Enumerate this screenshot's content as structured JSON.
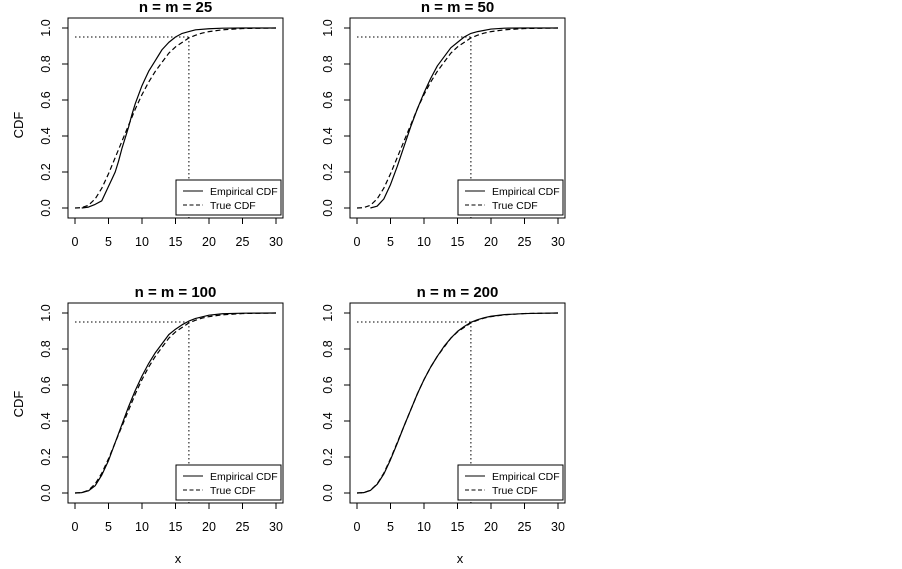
{
  "figure": {
    "ylabel": "CDF",
    "xlabel": "x"
  },
  "chart_data": [
    {
      "type": "line",
      "title": "n = m = 25",
      "xlim": [
        0,
        30
      ],
      "ylim": [
        0,
        1
      ],
      "xticks": [
        "0",
        "5",
        "10",
        "15",
        "20",
        "25",
        "30"
      ],
      "yticks": [
        "0.0",
        "0.2",
        "0.4",
        "0.6",
        "0.8",
        "1.0"
      ],
      "legend": {
        "position": "bottom-right",
        "entries": [
          "Empirical CDF",
          "True CDF"
        ]
      },
      "reference": {
        "y": 0.95,
        "x": 17
      },
      "series": [
        {
          "name": "Empirical CDF",
          "style": "solid",
          "x": [
            1,
            2,
            3,
            4,
            5,
            5.5,
            6,
            6.5,
            7,
            7.5,
            8,
            8.5,
            9,
            9.5,
            10,
            10.5,
            11,
            11.5,
            12,
            12.5,
            13,
            13.5,
            14,
            15,
            16,
            17,
            18,
            20,
            22,
            25,
            30
          ],
          "y": [
            0,
            0.005,
            0.02,
            0.04,
            0.12,
            0.16,
            0.2,
            0.26,
            0.33,
            0.39,
            0.45,
            0.52,
            0.58,
            0.63,
            0.68,
            0.72,
            0.76,
            0.79,
            0.82,
            0.85,
            0.88,
            0.9,
            0.92,
            0.95,
            0.97,
            0.98,
            0.99,
            0.996,
            0.999,
            1,
            1
          ]
        },
        {
          "name": "True CDF",
          "style": "dashed",
          "x": [
            0,
            1,
            2,
            3,
            4,
            5,
            6,
            7,
            8,
            9,
            10,
            11,
            12,
            13,
            14,
            15,
            16,
            17,
            18,
            19,
            20,
            22,
            25,
            28,
            30
          ],
          "y": [
            0,
            0.002,
            0.015,
            0.05,
            0.11,
            0.19,
            0.28,
            0.37,
            0.46,
            0.55,
            0.63,
            0.7,
            0.76,
            0.81,
            0.86,
            0.895,
            0.92,
            0.945,
            0.96,
            0.972,
            0.98,
            0.99,
            0.997,
            0.999,
            1
          ]
        }
      ]
    },
    {
      "type": "line",
      "title": "n = m = 50",
      "xlim": [
        0,
        30
      ],
      "ylim": [
        0,
        1
      ],
      "xticks": [
        "0",
        "5",
        "10",
        "15",
        "20",
        "25",
        "30"
      ],
      "yticks": [
        "0.0",
        "0.2",
        "0.4",
        "0.6",
        "0.8",
        "1.0"
      ],
      "legend": {
        "position": "bottom-right",
        "entries": [
          "Empirical CDF",
          "True CDF"
        ]
      },
      "reference": {
        "y": 0.95,
        "x": 17
      },
      "series": [
        {
          "name": "Empirical CDF",
          "style": "solid",
          "x": [
            2,
            3,
            4,
            5,
            6,
            7,
            8,
            9,
            10,
            11,
            12,
            13,
            14,
            15,
            16,
            17,
            18,
            20,
            22,
            25,
            30
          ],
          "y": [
            0,
            0.01,
            0.05,
            0.13,
            0.23,
            0.34,
            0.45,
            0.55,
            0.64,
            0.72,
            0.79,
            0.84,
            0.89,
            0.92,
            0.95,
            0.97,
            0.98,
            0.994,
            0.999,
            1,
            1
          ]
        },
        {
          "name": "True CDF",
          "style": "dashed",
          "x": [
            0,
            1,
            2,
            3,
            4,
            5,
            6,
            7,
            8,
            9,
            10,
            11,
            12,
            13,
            14,
            15,
            16,
            17,
            18,
            19,
            20,
            22,
            25,
            28,
            30
          ],
          "y": [
            0,
            0.002,
            0.015,
            0.05,
            0.11,
            0.19,
            0.28,
            0.37,
            0.46,
            0.55,
            0.63,
            0.7,
            0.76,
            0.81,
            0.86,
            0.895,
            0.92,
            0.945,
            0.96,
            0.972,
            0.98,
            0.99,
            0.997,
            0.999,
            1
          ]
        }
      ]
    },
    {
      "type": "line",
      "title": "n = m = 100",
      "xlim": [
        0,
        30
      ],
      "ylim": [
        0,
        1
      ],
      "xticks": [
        "0",
        "5",
        "10",
        "15",
        "20",
        "25",
        "30"
      ],
      "yticks": [
        "0.0",
        "0.2",
        "0.4",
        "0.6",
        "0.8",
        "1.0"
      ],
      "legend": {
        "position": "bottom-right",
        "entries": [
          "Empirical CDF",
          "True CDF"
        ]
      },
      "reference": {
        "y": 0.95,
        "x": 17
      },
      "series": [
        {
          "name": "Empirical CDF",
          "style": "solid",
          "x": [
            0,
            1,
            2,
            3,
            4,
            5,
            6,
            7,
            8,
            9,
            10,
            11,
            12,
            13,
            14,
            15,
            16,
            17,
            18,
            20,
            22,
            25,
            30
          ],
          "y": [
            0,
            0.002,
            0.012,
            0.04,
            0.1,
            0.18,
            0.28,
            0.38,
            0.48,
            0.57,
            0.65,
            0.72,
            0.78,
            0.83,
            0.88,
            0.91,
            0.935,
            0.955,
            0.97,
            0.988,
            0.996,
            0.999,
            1
          ]
        },
        {
          "name": "True CDF",
          "style": "dashed",
          "x": [
            0,
            1,
            2,
            3,
            4,
            5,
            6,
            7,
            8,
            9,
            10,
            11,
            12,
            13,
            14,
            15,
            16,
            17,
            18,
            19,
            20,
            22,
            25,
            28,
            30
          ],
          "y": [
            0,
            0.002,
            0.015,
            0.05,
            0.11,
            0.19,
            0.28,
            0.37,
            0.46,
            0.55,
            0.63,
            0.7,
            0.76,
            0.81,
            0.86,
            0.895,
            0.92,
            0.945,
            0.96,
            0.972,
            0.98,
            0.99,
            0.997,
            0.999,
            1
          ]
        }
      ]
    },
    {
      "type": "line",
      "title": "n = m = 200",
      "xlim": [
        0,
        30
      ],
      "ylim": [
        0,
        1
      ],
      "xticks": [
        "0",
        "5",
        "10",
        "15",
        "20",
        "25",
        "30"
      ],
      "yticks": [
        "0.0",
        "0.2",
        "0.4",
        "0.6",
        "0.8",
        "1.0"
      ],
      "legend": {
        "position": "bottom-right",
        "entries": [
          "Empirical CDF",
          "True CDF"
        ]
      },
      "reference": {
        "y": 0.95,
        "x": 17
      },
      "series": [
        {
          "name": "Empirical CDF",
          "style": "solid",
          "x": [
            0,
            1,
            2,
            3,
            4,
            5,
            6,
            7,
            8,
            9,
            10,
            11,
            12,
            13,
            14,
            15,
            16,
            17,
            18,
            19,
            20,
            22,
            25,
            28,
            30
          ],
          "y": [
            0,
            0.002,
            0.014,
            0.048,
            0.105,
            0.185,
            0.275,
            0.37,
            0.46,
            0.55,
            0.63,
            0.7,
            0.76,
            0.815,
            0.86,
            0.898,
            0.925,
            0.948,
            0.963,
            0.974,
            0.982,
            0.991,
            0.997,
            0.999,
            1
          ]
        },
        {
          "name": "True CDF",
          "style": "dashed",
          "x": [
            0,
            1,
            2,
            3,
            4,
            5,
            6,
            7,
            8,
            9,
            10,
            11,
            12,
            13,
            14,
            15,
            16,
            17,
            18,
            19,
            20,
            22,
            25,
            28,
            30
          ],
          "y": [
            0,
            0.002,
            0.015,
            0.05,
            0.11,
            0.19,
            0.28,
            0.37,
            0.46,
            0.55,
            0.63,
            0.7,
            0.76,
            0.81,
            0.86,
            0.895,
            0.92,
            0.945,
            0.96,
            0.972,
            0.98,
            0.99,
            0.997,
            0.999,
            1
          ]
        }
      ]
    }
  ]
}
